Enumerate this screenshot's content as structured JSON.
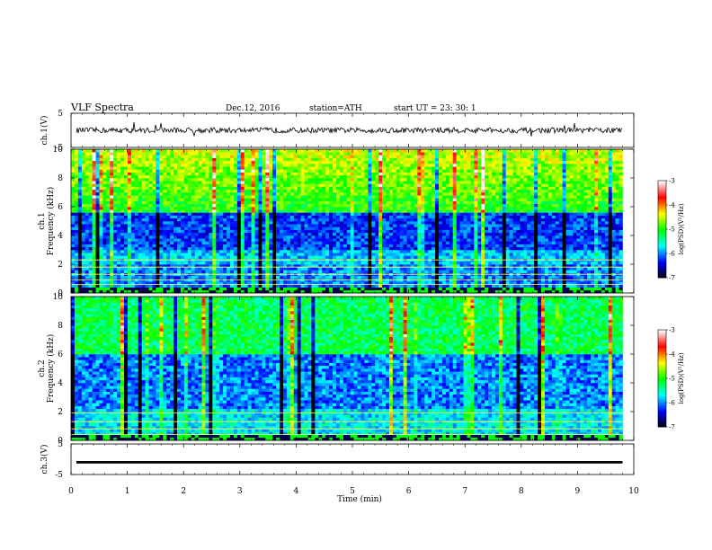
{
  "header": {
    "title": "VLF  Spectra",
    "date": "Dec.12, 2016",
    "station": "station=ATH",
    "start_ut": "start  UT  =    23: 30: 1"
  },
  "chart_data": [
    {
      "type": "line",
      "name": "ch1-waveform",
      "ylabel": "ch.1(V)",
      "ylim": [
        -5,
        5
      ],
      "yticks": [
        5,
        -5
      ],
      "xlim": [
        0,
        10
      ]
    },
    {
      "type": "heatmap",
      "name": "ch1-spectrogram",
      "ylabel": "ch.1\nFrequency (kHz)",
      "ylabel_lines": [
        "ch.1",
        "Frequency  (kHz)"
      ],
      "ylim": [
        0,
        10
      ],
      "yticks": [
        0,
        2,
        4,
        6,
        8,
        10
      ],
      "xlim": [
        0,
        9.8
      ],
      "colorbar": {
        "label": "log(PSD)(V²/Hz)",
        "range": [
          -7,
          -3
        ],
        "ticks": [
          -3,
          -4,
          -5,
          -6,
          -7
        ]
      }
    },
    {
      "type": "heatmap",
      "name": "ch2-spectrogram",
      "ylabel_lines": [
        "ch.2",
        "Frequency  (kHz)"
      ],
      "ylim": [
        0,
        10
      ],
      "yticks": [
        0,
        2,
        4,
        6,
        8,
        10
      ],
      "xlim": [
        0,
        9.8
      ],
      "colorbar": {
        "label": "log(PSD)(V²/Hz)",
        "range": [
          -7,
          -3
        ],
        "ticks": [
          -3,
          -4,
          -5,
          -6,
          -7
        ]
      }
    },
    {
      "type": "line",
      "name": "ch3-waveform",
      "ylabel": "ch.3(V)",
      "ylim": [
        -5,
        5
      ],
      "yticks": [
        5,
        -5
      ],
      "xlim": [
        0,
        10
      ]
    }
  ],
  "xaxis": {
    "label": "Time  (min)",
    "ticks": [
      0,
      1,
      2,
      3,
      4,
      5,
      6,
      7,
      8,
      9,
      10
    ]
  },
  "colors": {
    "colormap": [
      "#000000",
      "#0000ff",
      "#00ffff",
      "#00ff00",
      "#ffff00",
      "#ff0000",
      "#ffffff"
    ]
  }
}
